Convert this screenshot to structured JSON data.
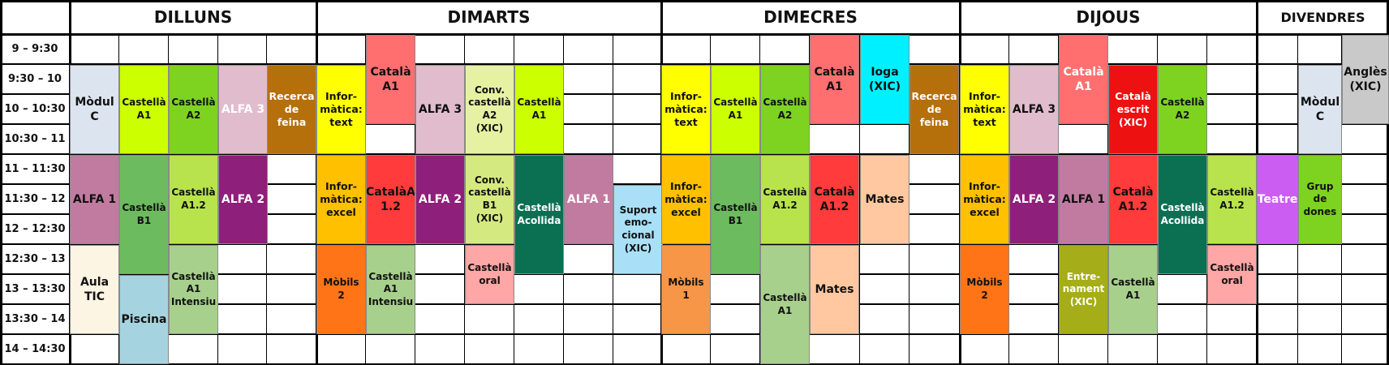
{
  "days": [
    "DILLUNS",
    "DIMARTS",
    "DIMECRES",
    "DIJOUS",
    "DIVENDRES"
  ],
  "times": [
    "9 – 9:30",
    "9:30 – 10",
    "10 – 10:30",
    "10:30 – 11",
    "11 – 11:30",
    "11:30 – 12",
    "12 – 12:30",
    "12:30 – 13",
    "13 – 13:30",
    "13:30 – 14",
    "14 – 14:30"
  ],
  "blocks": [
    {
      "day": 0,
      "lane": 0,
      "start": 1,
      "end": 4,
      "text": "Mòdul\nC",
      "color": "#dce4ef",
      "fg": "#111"
    },
    {
      "day": 0,
      "lane": 1,
      "start": 1,
      "end": 4,
      "text": "Castellà\nA1",
      "color": "#ccff00",
      "fg": "#111"
    },
    {
      "day": 0,
      "lane": 2,
      "start": 1,
      "end": 4,
      "text": "Castellà\nA2",
      "color": "#7ed321",
      "fg": "#111"
    },
    {
      "day": 0,
      "lane": 3,
      "start": 1,
      "end": 4,
      "text": "ALFA 3",
      "color": "#e1bccd",
      "fg": "#fff"
    },
    {
      "day": 0,
      "lane": 4,
      "start": 1,
      "end": 4,
      "text": "Recerca\nde\nfeina",
      "color": "#b5700c",
      "fg": "#fff"
    },
    {
      "day": 0,
      "lane": 0,
      "start": 4,
      "end": 7,
      "text": "ALFA 1",
      "color": "#c27ba0",
      "fg": "#111"
    },
    {
      "day": 0,
      "lane": 1,
      "start": 4,
      "end": 8,
      "text": "Castellà\nB1",
      "color": "#6dbb5f",
      "fg": "#111"
    },
    {
      "day": 0,
      "lane": 2,
      "start": 4,
      "end": 7,
      "text": "Castellà\nA1.2",
      "color": "#b9e34d",
      "fg": "#111"
    },
    {
      "day": 0,
      "lane": 3,
      "start": 4,
      "end": 7,
      "text": "ALFA 2",
      "color": "#8e1f7a",
      "fg": "#fff"
    },
    {
      "day": 0,
      "lane": 0,
      "start": 7,
      "end": 10,
      "text": "Aula\nTIC",
      "color": "#fdf5e3",
      "fg": "#111"
    },
    {
      "day": 0,
      "lane": 1,
      "start": 8,
      "end": 11,
      "text": "Piscina",
      "color": "#a5d4e0",
      "fg": "#111"
    },
    {
      "day": 0,
      "lane": 2,
      "start": 7,
      "end": 10,
      "text": "Castellà\nA1\nIntensiu",
      "color": "#a8d08d",
      "fg": "#111"
    },
    {
      "day": 1,
      "lane": 0,
      "start": 1,
      "end": 4,
      "text": "Infor-\nmàtica:\ntext",
      "color": "#ffff00",
      "fg": "#111"
    },
    {
      "day": 1,
      "lane": 1,
      "start": 0,
      "end": 3,
      "text": "Català\nA1",
      "color": "#ff6f6f",
      "fg": "#111"
    },
    {
      "day": 1,
      "lane": 2,
      "start": 1,
      "end": 4,
      "text": "ALFA 3",
      "color": "#e1bccd",
      "fg": "#111"
    },
    {
      "day": 1,
      "lane": 3,
      "start": 1,
      "end": 4,
      "text": "Conv.\ncastellà\nA2 (XIC)",
      "color": "#e6f2a2",
      "fg": "#111"
    },
    {
      "day": 1,
      "lane": 4,
      "start": 1,
      "end": 4,
      "text": "Castellà\nA1",
      "color": "#ccff00",
      "fg": "#111"
    },
    {
      "day": 1,
      "lane": 0,
      "start": 4,
      "end": 7,
      "text": "Infor-\nmàtica:\nexcel",
      "color": "#ffc000",
      "fg": "#111"
    },
    {
      "day": 1,
      "lane": 1,
      "start": 4,
      "end": 7,
      "text": "CatalàA\n1.2",
      "color": "#ff3b3b",
      "fg": "#111"
    },
    {
      "day": 1,
      "lane": 2,
      "start": 4,
      "end": 7,
      "text": "ALFA 2",
      "color": "#8e1f7a",
      "fg": "#fff"
    },
    {
      "day": 1,
      "lane": 3,
      "start": 4,
      "end": 7,
      "text": "Conv.\ncastellà\nB1 (XIC)",
      "color": "#d4ea80",
      "fg": "#111"
    },
    {
      "day": 1,
      "lane": 4,
      "start": 4,
      "end": 8,
      "text": "Castellà\nAcollida",
      "color": "#0b7052",
      "fg": "#fff"
    },
    {
      "day": 1,
      "lane": 5,
      "start": 4,
      "end": 7,
      "text": "ALFA 1",
      "color": "#c27ba0",
      "fg": "#fff"
    },
    {
      "day": 1,
      "lane": 6,
      "start": 5,
      "end": 8,
      "text": "Suport\nemo-\ncional\n(XIC)",
      "color": "#a9e0f7",
      "fg": "#111"
    },
    {
      "day": 1,
      "lane": 0,
      "start": 7,
      "end": 10,
      "text": "Mòbils 2",
      "color": "#ff7417",
      "fg": "#111"
    },
    {
      "day": 1,
      "lane": 1,
      "start": 7,
      "end": 10,
      "text": "Castellà\nA1\nIntensiu",
      "color": "#a8d08d",
      "fg": "#111"
    },
    {
      "day": 1,
      "lane": 3,
      "start": 7,
      "end": 9,
      "text": "Castellà\noral",
      "color": "#ffa6a6",
      "fg": "#111"
    },
    {
      "day": 2,
      "lane": 0,
      "start": 1,
      "end": 4,
      "text": "Infor-\nmàtica:\ntext",
      "color": "#ffff00",
      "fg": "#111"
    },
    {
      "day": 2,
      "lane": 1,
      "start": 1,
      "end": 4,
      "text": "Castellà\nA1",
      "color": "#ccff00",
      "fg": "#111"
    },
    {
      "day": 2,
      "lane": 2,
      "start": 1,
      "end": 4,
      "text": "Castellà\nA2",
      "color": "#7ed321",
      "fg": "#111"
    },
    {
      "day": 2,
      "lane": 3,
      "start": 0,
      "end": 3,
      "text": "Català\nA1",
      "color": "#ff6f6f",
      "fg": "#111"
    },
    {
      "day": 2,
      "lane": 4,
      "start": 0,
      "end": 3,
      "text": "Ioga\n(XIC)",
      "color": "#00f0ff",
      "fg": "#111"
    },
    {
      "day": 2,
      "lane": 5,
      "start": 1,
      "end": 4,
      "text": "Recerca\nde\nfeina",
      "color": "#b5700c",
      "fg": "#fff"
    },
    {
      "day": 2,
      "lane": 0,
      "start": 4,
      "end": 7,
      "text": "Infor-\nmàtica:\nexcel",
      "color": "#ffc000",
      "fg": "#111"
    },
    {
      "day": 2,
      "lane": 1,
      "start": 4,
      "end": 8,
      "text": "Castellà\nB1",
      "color": "#6dbb5f",
      "fg": "#111"
    },
    {
      "day": 2,
      "lane": 2,
      "start": 4,
      "end": 7,
      "text": "Castellà\nA1.2",
      "color": "#b9e34d",
      "fg": "#111"
    },
    {
      "day": 2,
      "lane": 3,
      "start": 4,
      "end": 7,
      "text": "Català\nA1.2",
      "color": "#ff3b3b",
      "fg": "#111"
    },
    {
      "day": 2,
      "lane": 4,
      "start": 4,
      "end": 7,
      "text": "Mates",
      "color": "#ffc8a0",
      "fg": "#111"
    },
    {
      "day": 2,
      "lane": 0,
      "start": 7,
      "end": 10,
      "text": "Mòbils 1",
      "color": "#f79646",
      "fg": "#111"
    },
    {
      "day": 2,
      "lane": 2,
      "start": 7,
      "end": 11,
      "text": "Castellà\nA1",
      "color": "#a8d08d",
      "fg": "#111"
    },
    {
      "day": 2,
      "lane": 3,
      "start": 7,
      "end": 10,
      "text": "Mates",
      "color": "#ffc8a0",
      "fg": "#111"
    },
    {
      "day": 3,
      "lane": 0,
      "start": 1,
      "end": 4,
      "text": "Infor-\nmàtica:\ntext",
      "color": "#ffff00",
      "fg": "#111"
    },
    {
      "day": 3,
      "lane": 1,
      "start": 1,
      "end": 4,
      "text": "ALFA 3",
      "color": "#e1bccd",
      "fg": "#111"
    },
    {
      "day": 3,
      "lane": 2,
      "start": 0,
      "end": 3,
      "text": "Català\nA1",
      "color": "#ff6f6f",
      "fg": "#fff"
    },
    {
      "day": 3,
      "lane": 3,
      "start": 1,
      "end": 4,
      "text": "Català\nescrit\n(XIC)",
      "color": "#ee1111",
      "fg": "#fff"
    },
    {
      "day": 3,
      "lane": 4,
      "start": 1,
      "end": 4,
      "text": "Castellà\nA2",
      "color": "#7ed321",
      "fg": "#111"
    },
    {
      "day": 3,
      "lane": 0,
      "start": 4,
      "end": 7,
      "text": "Infor-\nmàtica:\nexcel",
      "color": "#ffc000",
      "fg": "#111"
    },
    {
      "day": 3,
      "lane": 1,
      "start": 4,
      "end": 7,
      "text": "ALFA 2",
      "color": "#8e1f7a",
      "fg": "#fff"
    },
    {
      "day": 3,
      "lane": 2,
      "start": 4,
      "end": 7,
      "text": "ALFA 1",
      "color": "#c27ba0",
      "fg": "#111"
    },
    {
      "day": 3,
      "lane": 3,
      "start": 4,
      "end": 7,
      "text": "Català\nA1.2",
      "color": "#ff3b3b",
      "fg": "#111"
    },
    {
      "day": 3,
      "lane": 4,
      "start": 4,
      "end": 8,
      "text": "Castellà\nAcollida",
      "color": "#0b7052",
      "fg": "#fff"
    },
    {
      "day": 3,
      "lane": 5,
      "start": 4,
      "end": 7,
      "text": "Castellà\nA1.2",
      "color": "#b9e34d",
      "fg": "#111"
    },
    {
      "day": 3,
      "lane": 0,
      "start": 7,
      "end": 10,
      "text": "Mòbils  2",
      "color": "#ff7417",
      "fg": "#111"
    },
    {
      "day": 3,
      "lane": 2,
      "start": 7,
      "end": 10,
      "text": "Entre-\nnament\n(XIC)",
      "color": "#a5ad18",
      "fg": "#fff"
    },
    {
      "day": 3,
      "lane": 3,
      "start": 7,
      "end": 10,
      "text": "Castellà\nA1",
      "color": "#a8d08d",
      "fg": "#111"
    },
    {
      "day": 3,
      "lane": 5,
      "start": 7,
      "end": 9,
      "text": "Castellà\noral",
      "color": "#ffa6a6",
      "fg": "#111"
    },
    {
      "day": 4,
      "lane": 2,
      "start": 0,
      "end": 3,
      "text": "Anglès\n(XIC)",
      "color": "#c9c9c9",
      "fg": "#111"
    },
    {
      "day": 4,
      "lane": 1,
      "start": 1,
      "end": 4,
      "text": "Mòdul\nC",
      "color": "#dce4ef",
      "fg": "#111"
    },
    {
      "day": 4,
      "lane": 0,
      "start": 4,
      "end": 7,
      "text": "Teatre",
      "color": "#cc5df2",
      "fg": "#fff"
    },
    {
      "day": 4,
      "lane": 1,
      "start": 4,
      "end": 7,
      "text": "Grup de\ndones",
      "color": "#7ed321",
      "fg": "#111"
    }
  ]
}
